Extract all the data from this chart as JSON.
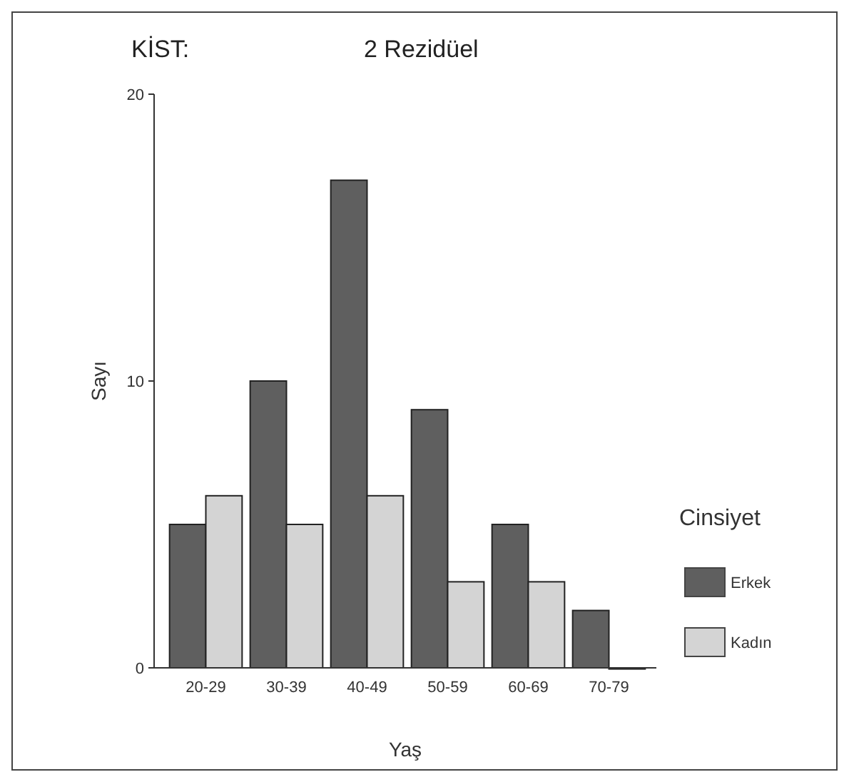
{
  "chart_data": {
    "type": "bar",
    "title": "KİST:",
    "subtitle": "2 Rezidüel",
    "xlabel": "Yaş",
    "ylabel": "Sayı",
    "legend_title": "Cinsiyet",
    "categories": [
      "20-29",
      "30-39",
      "40-49",
      "50-59",
      "60-69",
      "70-79"
    ],
    "series": [
      {
        "name": "Erkek",
        "color": "#5f5f5f",
        "values": [
          5,
          10,
          17,
          9,
          5,
          2
        ]
      },
      {
        "name": "Kadın",
        "color": "#d4d4d4",
        "values": [
          6,
          5,
          6,
          3,
          3,
          0
        ]
      }
    ],
    "ylim": [
      0,
      20
    ],
    "yticks": [
      0,
      10,
      20
    ],
    "grid": false,
    "legend": "right"
  }
}
